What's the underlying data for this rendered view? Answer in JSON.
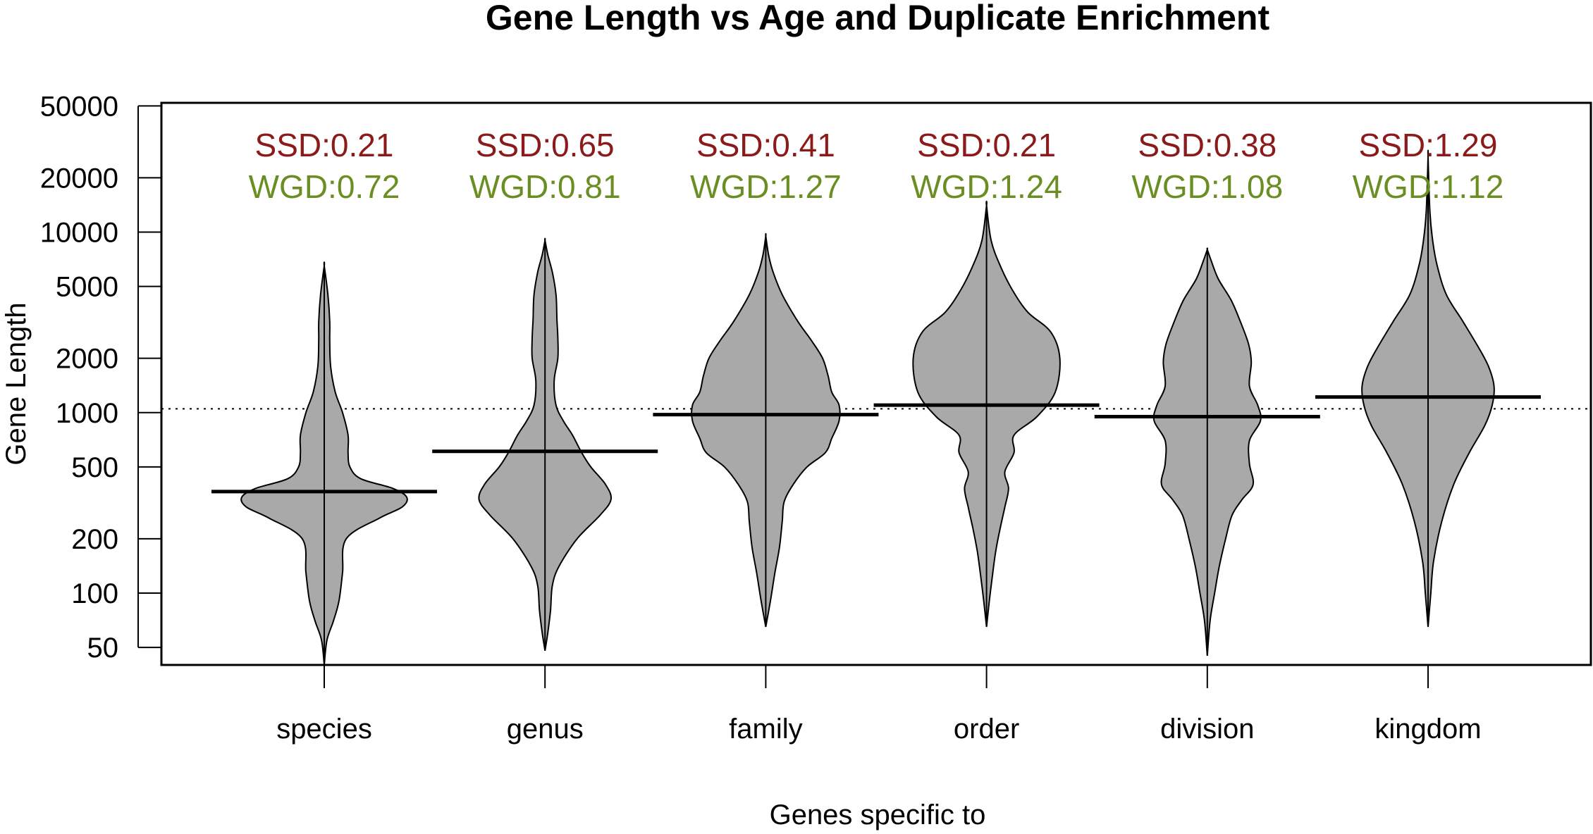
{
  "chart_data": {
    "type": "violin",
    "title": "Gene Length vs Age and Duplicate Enrichment",
    "xlabel": "Genes specific to",
    "ylabel": "Gene Length",
    "y_scale": "log",
    "ylim": [
      40,
      52000
    ],
    "y_ticks": [
      50,
      100,
      200,
      500,
      1000,
      2000,
      5000,
      10000,
      20000,
      50000
    ],
    "reference_line": 1050,
    "grid": false,
    "colors": {
      "violin_fill": "#a9a9a9",
      "ssd": "#8b1a1a",
      "wgd": "#6b8e23",
      "axis": "#000000"
    },
    "categories": [
      "species",
      "genus",
      "family",
      "order",
      "division",
      "kingdom"
    ],
    "medians": [
      365,
      610,
      975,
      1100,
      950,
      1220
    ],
    "ssd_labels": [
      "SSD:0.21",
      "SSD:0.65",
      "SSD:0.41",
      "SSD:0.21",
      "SSD:0.38",
      "SSD:1.29"
    ],
    "wgd_labels": [
      "WGD:0.72",
      "WGD:0.81",
      "WGD:1.27",
      "WGD:1.24",
      "WGD:1.08",
      "WGD:1.12"
    ],
    "violins": [
      {
        "range": [
          40,
          6500
        ],
        "profile": [
          [
            40,
            0
          ],
          [
            55,
            0.03
          ],
          [
            70,
            0.1
          ],
          [
            90,
            0.16
          ],
          [
            130,
            0.2
          ],
          [
            200,
            0.24
          ],
          [
            260,
            0.6
          ],
          [
            300,
            0.85
          ],
          [
            340,
            0.9
          ],
          [
            380,
            0.75
          ],
          [
            430,
            0.4
          ],
          [
            500,
            0.28
          ],
          [
            600,
            0.26
          ],
          [
            750,
            0.26
          ],
          [
            1000,
            0.2
          ],
          [
            1300,
            0.12
          ],
          [
            1800,
            0.07
          ],
          [
            2500,
            0.06
          ],
          [
            3200,
            0.06
          ],
          [
            4500,
            0.04
          ],
          [
            6500,
            0
          ]
        ]
      },
      {
        "range": [
          48,
          9000
        ],
        "profile": [
          [
            48,
            0
          ],
          [
            60,
            0.03
          ],
          [
            80,
            0.06
          ],
          [
            110,
            0.08
          ],
          [
            140,
            0.15
          ],
          [
            200,
            0.35
          ],
          [
            270,
            0.6
          ],
          [
            330,
            0.72
          ],
          [
            400,
            0.66
          ],
          [
            500,
            0.5
          ],
          [
            600,
            0.4
          ],
          [
            750,
            0.3
          ],
          [
            900,
            0.2
          ],
          [
            1100,
            0.12
          ],
          [
            1500,
            0.1
          ],
          [
            2000,
            0.14
          ],
          [
            2600,
            0.14
          ],
          [
            3300,
            0.13
          ],
          [
            4500,
            0.12
          ],
          [
            6000,
            0.08
          ],
          [
            7500,
            0.03
          ],
          [
            9000,
            0
          ]
        ]
      },
      {
        "range": [
          65,
          9500
        ],
        "profile": [
          [
            65,
            0
          ],
          [
            90,
            0.05
          ],
          [
            130,
            0.1
          ],
          [
            180,
            0.15
          ],
          [
            250,
            0.18
          ],
          [
            320,
            0.2
          ],
          [
            400,
            0.3
          ],
          [
            500,
            0.45
          ],
          [
            600,
            0.65
          ],
          [
            720,
            0.72
          ],
          [
            900,
            0.8
          ],
          [
            1100,
            0.8
          ],
          [
            1300,
            0.72
          ],
          [
            1600,
            0.68
          ],
          [
            2000,
            0.62
          ],
          [
            2500,
            0.5
          ],
          [
            3200,
            0.35
          ],
          [
            4500,
            0.18
          ],
          [
            6000,
            0.08
          ],
          [
            7500,
            0.03
          ],
          [
            9500,
            0
          ]
        ]
      },
      {
        "range": [
          65,
          14000
        ],
        "profile": [
          [
            65,
            0
          ],
          [
            90,
            0.03
          ],
          [
            120,
            0.06
          ],
          [
            170,
            0.1
          ],
          [
            230,
            0.15
          ],
          [
            300,
            0.2
          ],
          [
            380,
            0.24
          ],
          [
            470,
            0.2
          ],
          [
            600,
            0.3
          ],
          [
            750,
            0.3
          ],
          [
            950,
            0.55
          ],
          [
            1300,
            0.75
          ],
          [
            2000,
            0.8
          ],
          [
            2800,
            0.7
          ],
          [
            3600,
            0.45
          ],
          [
            4800,
            0.28
          ],
          [
            6500,
            0.15
          ],
          [
            9000,
            0.05
          ],
          [
            14000,
            0
          ]
        ]
      },
      {
        "range": [
          45,
          8000
        ],
        "profile": [
          [
            45,
            0
          ],
          [
            70,
            0.03
          ],
          [
            100,
            0.08
          ],
          [
            140,
            0.13
          ],
          [
            200,
            0.2
          ],
          [
            270,
            0.27
          ],
          [
            330,
            0.38
          ],
          [
            400,
            0.5
          ],
          [
            520,
            0.46
          ],
          [
            700,
            0.46
          ],
          [
            900,
            0.58
          ],
          [
            1100,
            0.55
          ],
          [
            1400,
            0.46
          ],
          [
            1900,
            0.48
          ],
          [
            2400,
            0.45
          ],
          [
            3200,
            0.36
          ],
          [
            4200,
            0.26
          ],
          [
            5500,
            0.12
          ],
          [
            7000,
            0.04
          ],
          [
            8000,
            0
          ]
        ]
      },
      {
        "range": [
          65,
          26000
        ],
        "profile": [
          [
            65,
            0
          ],
          [
            100,
            0.03
          ],
          [
            150,
            0.06
          ],
          [
            250,
            0.15
          ],
          [
            400,
            0.28
          ],
          [
            600,
            0.45
          ],
          [
            850,
            0.62
          ],
          [
            1100,
            0.7
          ],
          [
            1400,
            0.72
          ],
          [
            1800,
            0.66
          ],
          [
            2300,
            0.55
          ],
          [
            3200,
            0.38
          ],
          [
            4500,
            0.2
          ],
          [
            6500,
            0.1
          ],
          [
            9000,
            0.05
          ],
          [
            13000,
            0.02
          ],
          [
            26000,
            0
          ]
        ]
      }
    ]
  }
}
